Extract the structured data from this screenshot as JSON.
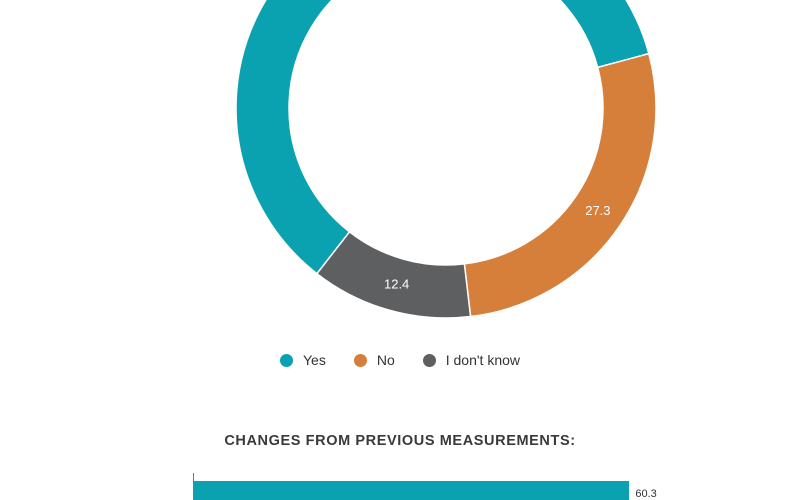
{
  "chart_data": [
    {
      "type": "pie",
      "donut": true,
      "slices": [
        {
          "label": "Yes",
          "value": 60.3,
          "color": "#0aa2b0",
          "show_label": false
        },
        {
          "label": "No",
          "value": 27.3,
          "color": "#d67f3a",
          "show_label": true
        },
        {
          "label": "I don't know",
          "value": 12.4,
          "color": "#5e5f61",
          "show_label": true
        }
      ],
      "legend": [
        "Yes",
        "No",
        "I don't know"
      ],
      "legend_placement": "bottom"
    },
    {
      "type": "bar",
      "orientation": "horizontal",
      "title": "CHANGES FROM PREVIOUS MEASUREMENTS:",
      "values": [
        60.3
      ],
      "value_labels": [
        "60.3"
      ],
      "color": "#0aa2b0",
      "xlim": [
        0,
        100
      ]
    }
  ]
}
